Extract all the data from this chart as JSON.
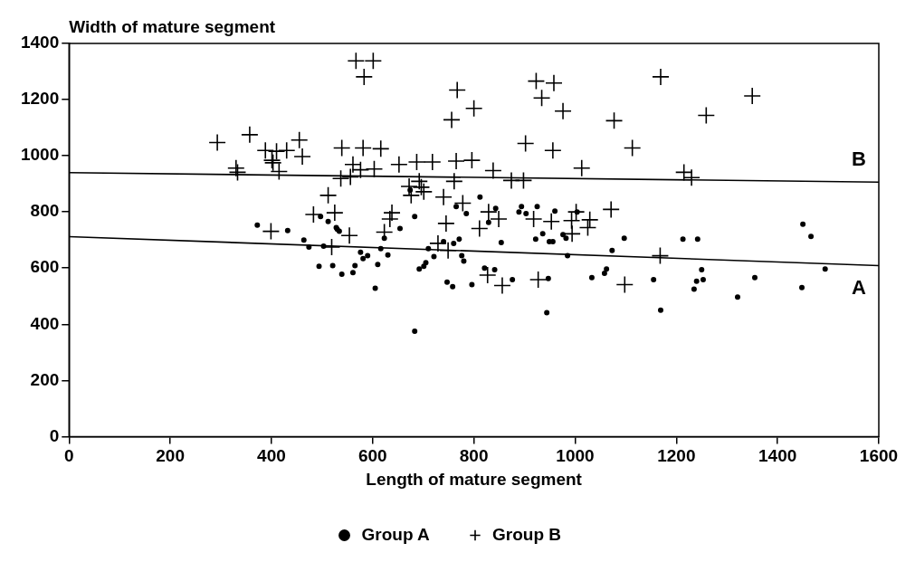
{
  "chart_data": {
    "type": "scatter",
    "xlabel": "Length of mature segment",
    "ylabel": "Width of mature segment",
    "xlim": [
      0,
      1600
    ],
    "ylim": [
      0,
      1400
    ],
    "xticks": [
      0,
      200,
      400,
      600,
      800,
      1000,
      1200,
      1400,
      1600
    ],
    "yticks": [
      0,
      200,
      400,
      600,
      800,
      1000,
      1200,
      1400
    ],
    "grid": false,
    "legend": "bottom",
    "annotations": [
      {
        "text": "B",
        "x": 1600,
        "y": 906
      },
      {
        "text": "A",
        "x": 1600,
        "y": 609
      }
    ],
    "series": [
      {
        "name": "Group A",
        "marker": "circle",
        "color": "#000000",
        "x": [
          372,
          432,
          464,
          474,
          503,
          494,
          521,
          512,
          530,
          528,
          534,
          539,
          561,
          565,
          576,
          581,
          590,
          605,
          610,
          616,
          623,
          630,
          654,
          683,
          692,
          701,
          705,
          710,
          721,
          740,
          760,
          771,
          776,
          780,
          747,
          758,
          796,
          821,
          841,
          876,
          854,
          829,
          922,
          936,
          949,
          956,
          976,
          982,
          985,
          947,
          944,
          1033,
          1058,
          1062,
          1073,
          1097,
          1155,
          1169,
          1213,
          1242,
          1250,
          1240,
          1253,
          1235,
          1321,
          1355,
          1448,
          1450,
          1466,
          1494,
          812,
          765,
          785,
          843,
          894,
          889,
          903,
          925,
          960,
          1004,
          683,
          674,
          497
        ],
        "values": [
          753,
          734,
          700,
          675,
          678,
          606,
          609,
          766,
          738,
          744,
          731,
          578,
          584,
          609,
          656,
          634,
          644,
          528,
          613,
          669,
          706,
          647,
          741,
          375,
          597,
          606,
          619,
          669,
          641,
          694,
          688,
          703,
          644,
          625,
          550,
          534,
          541,
          600,
          594,
          559,
          691,
          763,
          703,
          722,
          694,
          694,
          719,
          706,
          644,
          563,
          441,
          566,
          581,
          597,
          663,
          706,
          559,
          450,
          703,
          703,
          594,
          553,
          559,
          525,
          497,
          566,
          531,
          756,
          713,
          597,
          853,
          819,
          794,
          813,
          819,
          800,
          794,
          819,
          803,
          800,
          784,
          878,
          784
        ]
      },
      {
        "name": "Group B",
        "marker": "cross",
        "color": "#000000",
        "x": [
          293,
          357,
          388,
          410,
          430,
          455,
          461,
          401,
          403,
          330,
          333,
          415,
          512,
          483,
          539,
          567,
          601,
          583,
          767,
          800,
          756,
          923,
          958,
          934,
          976,
          902,
          956,
          1013,
          581,
          616,
          561,
          576,
          603,
          652,
          687,
          718,
          765,
          796,
          838,
          537,
          556,
          692,
          761,
          874,
          898,
          672,
          696,
          676,
          701,
          740,
          778,
          829,
          849,
          525,
          638,
          634,
          918,
          953,
          993,
          1002,
          1029,
          745,
          1169,
          1350,
          1259,
          1077,
          1113,
          1215,
          1230,
          1071,
          399,
          519,
          554,
          623,
          811,
          729,
          749,
          827,
          856,
          927,
          994,
          1025,
          1168,
          1098
        ],
        "values": [
          1047,
          1075,
          1019,
          1016,
          1019,
          1056,
          997,
          984,
          975,
          956,
          941,
          944,
          859,
          791,
          1028,
          1338,
          1338,
          1281,
          1234,
          1169,
          1128,
          1266,
          1259,
          1206,
          1159,
          1044,
          1019,
          956,
          1028,
          1025,
          969,
          950,
          953,
          969,
          978,
          978,
          981,
          984,
          947,
          919,
          925,
          909,
          909,
          912,
          912,
          891,
          888,
          859,
          872,
          853,
          831,
          800,
          775,
          797,
          797,
          775,
          775,
          766,
          769,
          800,
          772,
          759,
          1281,
          1213,
          1144,
          1125,
          1028,
          941,
          922,
          809,
          731,
          675,
          716,
          728,
          741,
          688,
          663,
          575,
          538,
          559,
          722,
          744,
          644,
          541
        ]
      },
      {
        "type": "line",
        "marker": "none",
        "color": "#000000",
        "x": [
          0,
          1600
        ],
        "values": [
          940,
          906
        ]
      },
      {
        "type": "line",
        "marker": "none",
        "color": "#000000",
        "x": [
          0,
          1600
        ],
        "values": [
          712,
          609
        ]
      }
    ]
  }
}
